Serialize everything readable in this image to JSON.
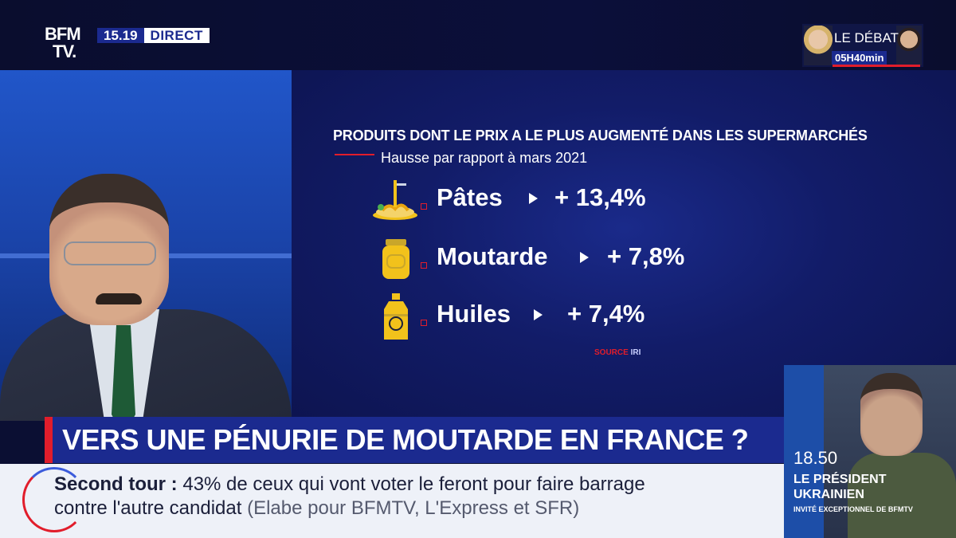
{
  "channel": {
    "logo_line1": "BFM",
    "logo_line2": "TV.",
    "time": "15.19",
    "live_label": "DIRECT"
  },
  "debate_promo": {
    "title": "LE DÉBAT",
    "countdown": "05H40min"
  },
  "infographic": {
    "title": "PRODUITS DONT LE PRIX A LE PLUS AUGMENTÉ DANS LES SUPERMARCHÉS",
    "subtitle": "Hausse par rapport à mars 2021",
    "items": [
      {
        "name": "Pâtes",
        "value": "+ 13,4%",
        "icon": "pasta-icon"
      },
      {
        "name": "Moutarde",
        "value": "+ 7,8%",
        "icon": "mustard-jar-icon"
      },
      {
        "name": "Huiles",
        "value": "+ 7,4%",
        "icon": "oil-bottle-icon"
      }
    ],
    "source_label": "SOURCE",
    "source_name": "IRI"
  },
  "headline": "VERS UNE PÉNURIE DE MOUTARDE EN FRANCE ?",
  "ticker": {
    "label": "Second tour :",
    "text1": "43% de ceux qui vont voter le feront pour faire barrage",
    "text2": "contre l'autre candidat",
    "source": "(Elabe pour BFMTV, L'Express et SFR)"
  },
  "inset": {
    "time": "18.50",
    "title_line1": "LE PRÉSIDENT",
    "title_line2": "UKRAINIEN",
    "caption": "INVITÉ EXCEPTIONNEL DE BFMTV"
  },
  "colors": {
    "accent_red": "#e11d2b",
    "brand_blue": "#1b2a8f",
    "icon_yellow": "#f2c21b"
  }
}
